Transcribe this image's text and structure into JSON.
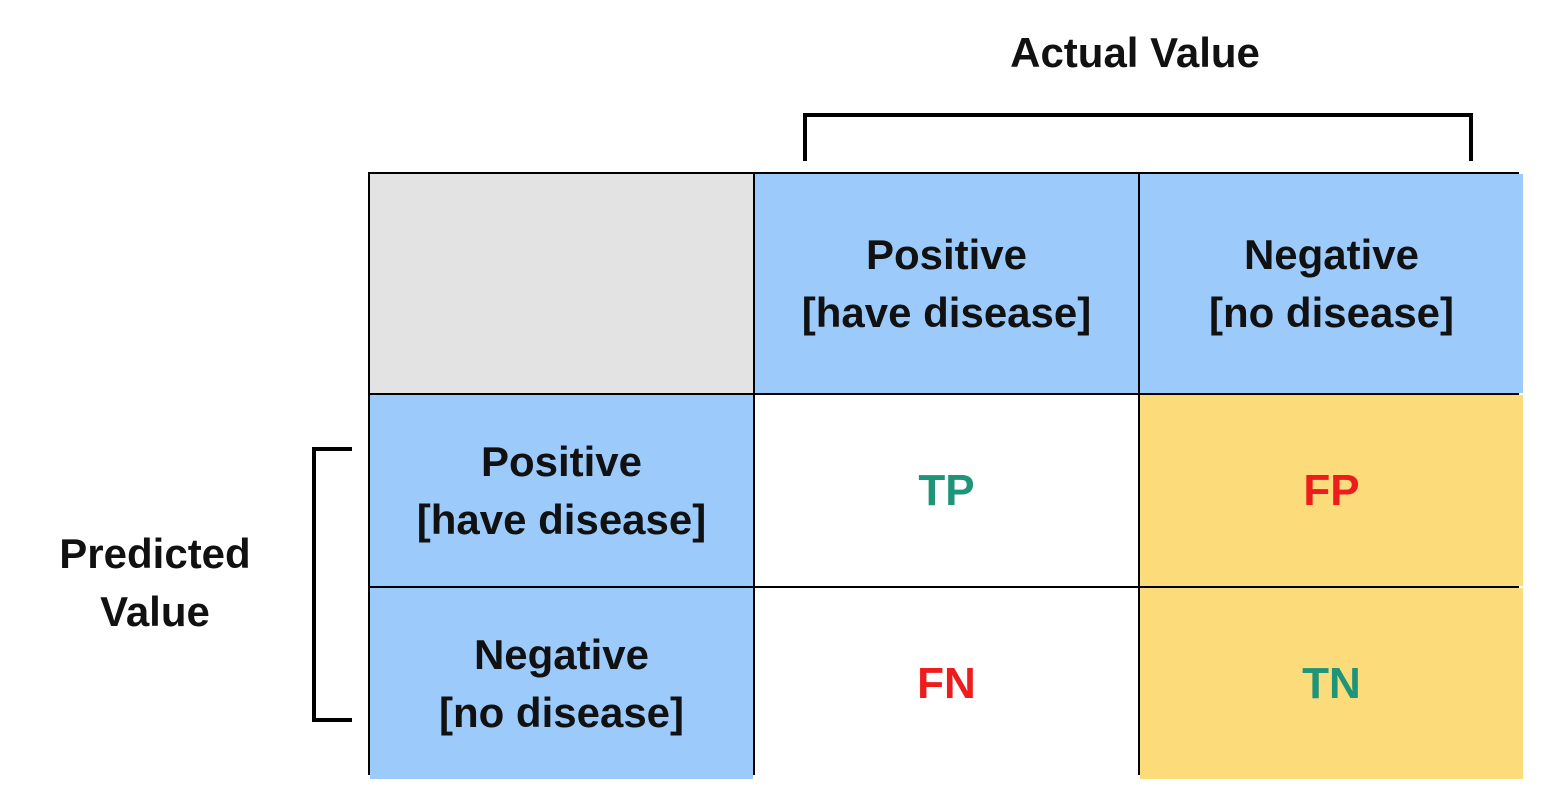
{
  "actual_title": "Actual Value",
  "predicted_title": [
    "Predicted",
    "Value"
  ],
  "columns": [
    {
      "label": "Positive",
      "sub": "[have disease]"
    },
    {
      "label": "Negative",
      "sub": "[no disease]"
    }
  ],
  "rows": [
    {
      "label": "Positive",
      "sub": "[have disease]"
    },
    {
      "label": "Negative",
      "sub": "[no disease]"
    }
  ],
  "cells": {
    "tp": "TP",
    "fp": "FP",
    "fn": "FN",
    "tn": "TN"
  },
  "colors": {
    "correct": "#1f9478",
    "error": "#ee1c1c",
    "header_fill": "#9ccbfb",
    "corner_fill": "#e3e3e3",
    "negative_column_fill": "#fcdc7a"
  }
}
